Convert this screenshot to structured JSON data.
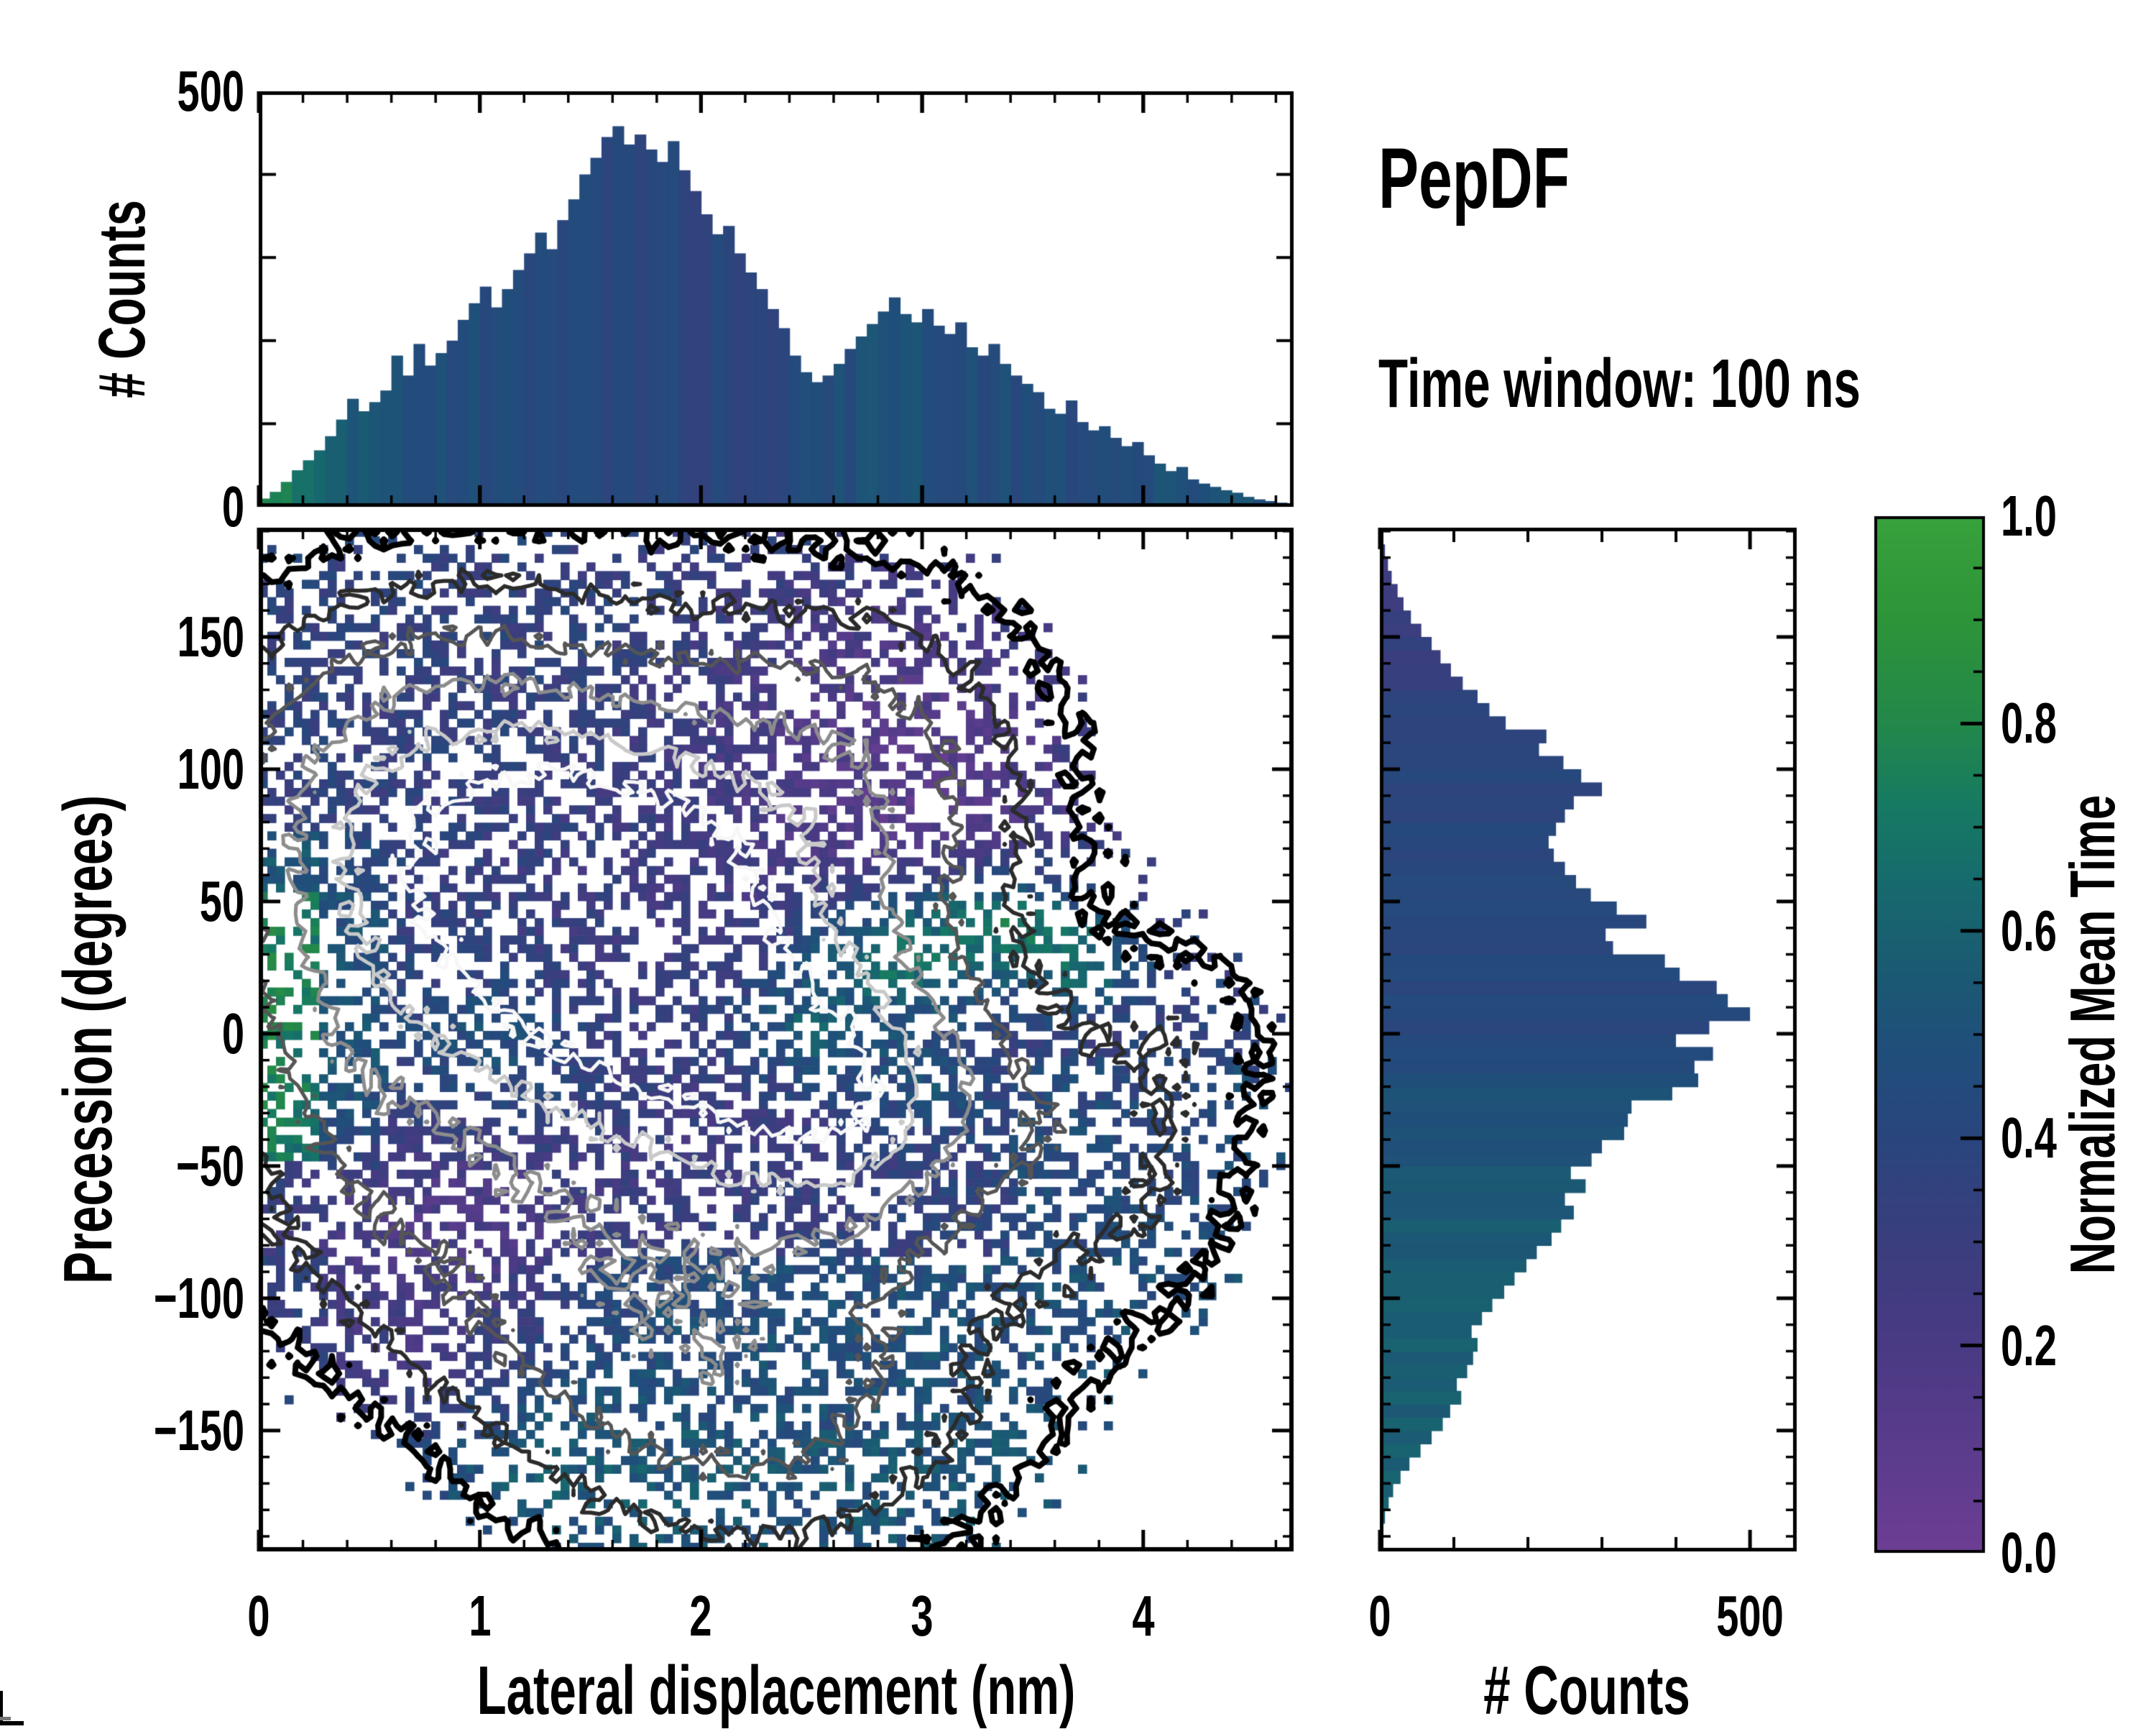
{
  "header": {
    "title": "PepDF",
    "subtitle": "Time window: 100 ns"
  },
  "colors": {
    "background": "#ffffff",
    "frame": "#000000",
    "contour_levels": [
      "#000000",
      "#2b2b2b",
      "#555555",
      "#8c8c8c",
      "#c9c9c9",
      "#f7f7f7"
    ]
  },
  "colormap": {
    "name": "normalized-mean-time",
    "stops": [
      [
        0.0,
        "#6d3e94"
      ],
      [
        0.1,
        "#5b3c8c"
      ],
      [
        0.2,
        "#4a3a84"
      ],
      [
        0.3,
        "#3a3e7e"
      ],
      [
        0.4,
        "#2a467d"
      ],
      [
        0.48,
        "#204e7b"
      ],
      [
        0.56,
        "#1b5a73"
      ],
      [
        0.64,
        "#17696e"
      ],
      [
        0.72,
        "#167a63"
      ],
      [
        0.8,
        "#23884a"
      ],
      [
        0.9,
        "#2e9439"
      ],
      [
        1.0,
        "#38a23c"
      ]
    ]
  },
  "chart_data": [
    {
      "type": "bar",
      "id": "top_histogram",
      "ylabel": "# Counts",
      "orientation": "vertical",
      "xlim": [
        0,
        4.68
      ],
      "ylim": [
        0,
        500
      ],
      "yticks": [
        {
          "v": 0,
          "l": "0"
        },
        {
          "v": 500,
          "l": "500"
        }
      ],
      "ytick_minor_step": 100,
      "bin_start": 0.0,
      "bin_width": 0.05,
      "values": [
        10,
        18,
        30,
        44,
        56,
        68,
        85,
        105,
        130,
        115,
        126,
        140,
        182,
        158,
        196,
        170,
        185,
        200,
        225,
        245,
        265,
        240,
        262,
        285,
        305,
        330,
        310,
        345,
        370,
        400,
        420,
        445,
        458,
        436,
        448,
        430,
        415,
        440,
        405,
        380,
        352,
        328,
        338,
        305,
        282,
        262,
        238,
        215,
        182,
        162,
        150,
        158,
        172,
        190,
        205,
        220,
        235,
        252,
        232,
        222,
        238,
        218,
        208,
        222,
        192,
        182,
        196,
        172,
        158,
        148,
        138,
        118,
        112,
        128,
        102,
        92,
        97,
        83,
        73,
        78,
        62,
        52,
        43,
        48,
        33,
        28,
        24,
        20,
        17,
        12,
        9,
        7,
        5,
        4
      ],
      "color_profile": [
        [
          0,
          0.88
        ],
        [
          0.1,
          0.82
        ],
        [
          0.2,
          0.74
        ],
        [
          0.3,
          0.68
        ],
        [
          0.45,
          0.6
        ],
        [
          0.6,
          0.55
        ],
        [
          0.8,
          0.52
        ],
        [
          1.0,
          0.5
        ],
        [
          1.3,
          0.47
        ],
        [
          1.6,
          0.455
        ],
        [
          2.0,
          0.45
        ],
        [
          2.3,
          0.46
        ],
        [
          2.55,
          0.5
        ],
        [
          2.8,
          0.54
        ],
        [
          3.1,
          0.52
        ],
        [
          3.4,
          0.5
        ],
        [
          3.7,
          0.5
        ],
        [
          4.0,
          0.53
        ],
        [
          4.3,
          0.55
        ],
        [
          4.7,
          0.54
        ]
      ],
      "color_jitter": 0.05
    },
    {
      "type": "heatmap",
      "id": "main_heatmap",
      "xlabel": "Lateral displacement (nm)",
      "ylabel": "Precession (degrees)",
      "xlim": [
        0,
        4.68
      ],
      "ylim": [
        -195.7,
        191.3
      ],
      "xticks": [
        {
          "v": 0,
          "l": "0"
        },
        {
          "v": 1,
          "l": "1"
        },
        {
          "v": 2,
          "l": "2"
        },
        {
          "v": 3,
          "l": "3"
        },
        {
          "v": 4,
          "l": "4"
        }
      ],
      "yticks": [
        {
          "v": 150,
          "l": "150"
        },
        {
          "v": 100,
          "l": "100"
        },
        {
          "v": 50,
          "l": "50"
        },
        {
          "v": 0,
          "l": "0"
        },
        {
          "v": -50,
          "l": "−50"
        },
        {
          "v": -100,
          "l": "−100"
        },
        {
          "v": -150,
          "l": "−150"
        }
      ],
      "xtick_minor_step": 0.2,
      "ytick_minor_step": 10,
      "grid": {
        "nx": 120,
        "ny": 118
      },
      "mask_threshold": 0.1,
      "count_field": {
        "base": {
          "x": 1.85,
          "y": -15,
          "sx": 1.55,
          "sy": 145,
          "amp": 0.3
        },
        "blobs": [
          {
            "x": 1.6,
            "y": 35,
            "sx": 0.75,
            "sy": 60,
            "amp": 0.85
          },
          {
            "x": 2.7,
            "y": -25,
            "sx": 0.5,
            "sy": 38,
            "amp": 0.55
          },
          {
            "x": 0.7,
            "y": 105,
            "sx": 0.75,
            "sy": 48,
            "amp": 0.4
          },
          {
            "x": 2.85,
            "y": 105,
            "sx": 0.6,
            "sy": 45,
            "amp": 0.34
          },
          {
            "x": 1.1,
            "y": -115,
            "sx": 0.9,
            "sy": 50,
            "amp": 0.35
          },
          {
            "x": 2.4,
            "y": -145,
            "sx": 0.8,
            "sy": 40,
            "amp": 0.28
          },
          {
            "x": 3.9,
            "y": -50,
            "sx": 0.45,
            "sy": 45,
            "amp": 0.24
          },
          {
            "x": 0.35,
            "y": 10,
            "sx": 0.4,
            "sy": 70,
            "amp": 0.26
          },
          {
            "x": 4.3,
            "y": 10,
            "sx": 0.3,
            "sy": 25,
            "amp": 0.12
          }
        ],
        "suppress": [
          {
            "x": 0,
            "y": -200,
            "sx": 1.0,
            "sy": 80,
            "amp": 0.85
          },
          {
            "x": 4.7,
            "y": 150,
            "sx": 0.9,
            "sy": 90,
            "amp": 0.5
          },
          {
            "x": 4.7,
            "y": -190,
            "sx": 0.8,
            "sy": 60,
            "amp": 0.6
          }
        ],
        "noise": 0.1
      },
      "time_field": {
        "base": 0.46,
        "boxes": [
          {
            "x0": -0.05,
            "x1": 0.28,
            "y0": -48,
            "y1": 78,
            "t": 0.9,
            "w": 1.0
          },
          {
            "x0": 0.28,
            "x1": 0.6,
            "y0": -52,
            "y1": 80,
            "t": 0.72,
            "w": 0.7
          },
          {
            "x0": -0.1,
            "x1": 2.3,
            "y0": 55,
            "y1": 200,
            "t": 0.47,
            "w": 0.55
          },
          {
            "x0": -0.1,
            "x1": 5,
            "y0": -200,
            "y1": -85,
            "t": 0.6,
            "w": 0.75
          },
          {
            "x0": -0.1,
            "x1": 5,
            "y0": -200,
            "y1": -150,
            "t": 0.64,
            "w": 0.5
          },
          {
            "x0": 3.4,
            "x1": 4.8,
            "y0": -85,
            "y1": -10,
            "t": 0.58,
            "w": 0.6
          }
        ],
        "blobs": [
          {
            "x": 2.85,
            "y": 95,
            "sx": 0.7,
            "sy": 55,
            "t": 0.16,
            "w": 0.92
          },
          {
            "x": 1.75,
            "y": 30,
            "sx": 0.8,
            "sy": 55,
            "t": 0.33,
            "w": 0.68
          },
          {
            "x": 0.9,
            "y": 125,
            "sx": 0.9,
            "sy": 40,
            "t": 0.4,
            "w": 0.5
          },
          {
            "x": 0.95,
            "y": -68,
            "sx": 0.35,
            "sy": 22,
            "t": 0.22,
            "w": 0.85
          },
          {
            "x": 0.7,
            "y": -95,
            "sx": 0.45,
            "sy": 38,
            "t": 0.27,
            "w": 0.85
          },
          {
            "x": 0.45,
            "y": -140,
            "sx": 0.3,
            "sy": 22,
            "t": 0.3,
            "w": 0.6
          },
          {
            "x": 2.05,
            "y": -45,
            "sx": 0.45,
            "sy": 22,
            "t": 0.33,
            "w": 0.6
          },
          {
            "x": 2.9,
            "y": 28,
            "sx": 0.32,
            "sy": 17,
            "t": 0.8,
            "w": 0.9
          },
          {
            "x": 3.35,
            "y": 42,
            "sx": 0.26,
            "sy": 14,
            "t": 0.82,
            "w": 0.9
          },
          {
            "x": 3.7,
            "y": 28,
            "sx": 0.2,
            "sy": 12,
            "t": 0.84,
            "w": 0.85
          },
          {
            "x": 2.5,
            "y": 2,
            "sx": 0.24,
            "sy": 14,
            "t": 0.72,
            "w": 0.8
          },
          {
            "x": 1.05,
            "y": -4,
            "sx": 0.3,
            "sy": 20,
            "t": 0.68,
            "w": 0.6
          },
          {
            "x": 1.45,
            "y": -162,
            "sx": 0.32,
            "sy": 15,
            "t": 0.7,
            "w": 0.6
          },
          {
            "x": 3.05,
            "y": -20,
            "sx": 0.22,
            "sy": 13,
            "t": 0.7,
            "w": 0.55
          }
        ],
        "noise": 0.18
      },
      "contours": {
        "levels": [
          0.13,
          0.27,
          0.43,
          0.6,
          0.77,
          0.92
        ],
        "colors": [
          "#000000",
          "#2b2b2b",
          "#555555",
          "#8c8c8c",
          "#c9c9c9",
          "#f7f7f7"
        ],
        "widths": [
          8,
          5.5,
          5,
          5,
          5,
          5
        ]
      },
      "speckle": {
        "p_low": 0.22,
        "p_mid": 0.1,
        "p_high": 0.035,
        "p_core": 0.012
      }
    },
    {
      "type": "bar",
      "id": "right_histogram",
      "xlabel": "# Counts",
      "orientation": "horizontal",
      "xlim": [
        0,
        563
      ],
      "xticks": [
        {
          "v": 0,
          "l": "0"
        },
        {
          "v": 500,
          "l": "500"
        }
      ],
      "xtick_minor_step": 100,
      "ytick_major_step": 50,
      "ytick_minor_step": 10,
      "bin_start": -195,
      "bin_width": 5,
      "values": [
        2,
        4,
        7,
        12,
        18,
        28,
        40,
        55,
        70,
        85,
        95,
        110,
        104,
        118,
        126,
        132,
        124,
        138,
        152,
        168,
        182,
        198,
        212,
        232,
        245,
        262,
        250,
        278,
        258,
        286,
        300,
        330,
        335,
        340,
        395,
        430,
        425,
        450,
        400,
        445,
        500,
        470,
        455,
        405,
        385,
        315,
        305,
        360,
        320,
        285,
        265,
        250,
        235,
        228,
        238,
        250,
        262,
        300,
        272,
        248,
        215,
        225,
        170,
        148,
        132,
        112,
        96,
        82,
        70,
        56,
        42,
        32,
        24,
        16,
        11,
        7,
        4,
        2
      ],
      "color_profile": [
        [
          -195,
          0.62
        ],
        [
          -160,
          0.63
        ],
        [
          -130,
          0.615
        ],
        [
          -100,
          0.6
        ],
        [
          -75,
          0.59
        ],
        [
          -55,
          0.575
        ],
        [
          -40,
          0.55
        ],
        [
          -25,
          0.52
        ],
        [
          -10,
          0.49
        ],
        [
          0,
          0.475
        ],
        [
          15,
          0.465
        ],
        [
          30,
          0.46
        ],
        [
          45,
          0.46
        ],
        [
          60,
          0.465
        ],
        [
          75,
          0.46
        ],
        [
          90,
          0.455
        ],
        [
          105,
          0.44
        ],
        [
          120,
          0.41
        ],
        [
          135,
          0.375
        ],
        [
          150,
          0.345
        ],
        [
          165,
          0.32
        ],
        [
          180,
          0.3
        ],
        [
          195,
          0.3
        ]
      ],
      "color_jitter": 0.04
    },
    {
      "type": "colorbar",
      "id": "colorbar",
      "label": "Normalized Mean Time",
      "lim": [
        0,
        1
      ],
      "ticks": [
        {
          "v": 0,
          "l": "0.0"
        },
        {
          "v": 0.2,
          "l": "0.2"
        },
        {
          "v": 0.4,
          "l": "0.4"
        },
        {
          "v": 0.6,
          "l": "0.6"
        },
        {
          "v": 0.8,
          "l": "0.8"
        },
        {
          "v": 1,
          "l": "1.0"
        }
      ],
      "tick_minor_step": 0.05
    }
  ]
}
